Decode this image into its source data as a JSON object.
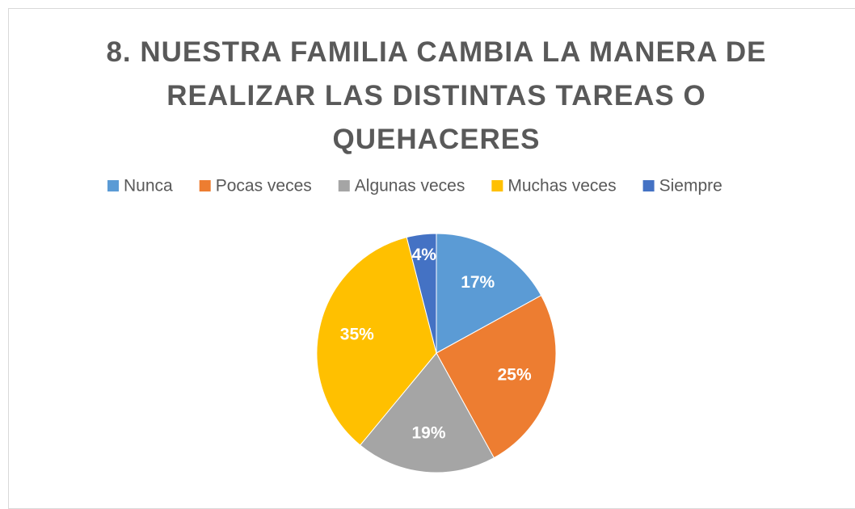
{
  "chart_data": {
    "type": "pie",
    "title": "8. NUESTRA FAMILIA CAMBIA LA MANERA DE REALIZAR LAS DISTINTAS TAREAS O QUEHACERES",
    "categories": [
      "Nunca",
      "Pocas veces",
      "Algunas veces",
      "Muchas veces",
      "Siempre"
    ],
    "values": [
      17,
      25,
      19,
      35,
      4
    ],
    "value_labels": [
      "17%",
      "25%",
      "19%",
      "35%",
      "4%"
    ],
    "colors": [
      "#5b9bd5",
      "#ed7d31",
      "#a5a5a5",
      "#ffc000",
      "#4472c4"
    ],
    "legend": "top"
  }
}
